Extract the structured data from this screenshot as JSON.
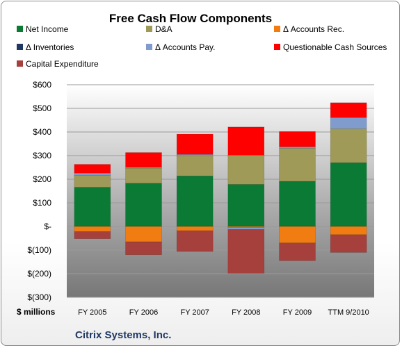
{
  "chart_data": {
    "type": "bar",
    "stacked": true,
    "title": "Free Cash Flow Components",
    "units_label": "$ millions",
    "footer": "Citrix Systems, Inc.",
    "categories": [
      "FY 2005",
      "FY 2006",
      "FY 2007",
      "FY 2008",
      "FY 2009",
      "TTM 9/2010"
    ],
    "ylim": [
      -300,
      600
    ],
    "yticks": [
      -300,
      -200,
      -100,
      0,
      100,
      200,
      300,
      400,
      500,
      600
    ],
    "ytick_labels": [
      "$(300)",
      "$(200)",
      "$(100)",
      "$-",
      "$100",
      "$200",
      "$300",
      "$400",
      "$500",
      "$600"
    ],
    "grid": true,
    "legend_position": "top",
    "series": [
      {
        "name": "Net Income",
        "color": "#0a7a35",
        "values": [
          166,
          183,
          214,
          178,
          191,
          270
        ]
      },
      {
        "name": "D&A",
        "color": "#a09a58",
        "values": [
          50,
          64,
          85,
          124,
          140,
          144
        ]
      },
      {
        "name": "Δ Accounts Rec.",
        "color": "#f07c12",
        "values": [
          -22,
          -65,
          -18,
          -5,
          -70,
          -35
        ]
      },
      {
        "name": "Δ Inventories",
        "color": "#1f3864",
        "values": [
          0,
          0,
          0,
          0,
          0,
          0
        ]
      },
      {
        "name": "Δ Accounts Pay.",
        "color": "#7f9ccc",
        "values": [
          10,
          4,
          6,
          -8,
          6,
          47
        ]
      },
      {
        "name": "Questionable Cash Sources",
        "color": "#ff0000",
        "values": [
          37,
          62,
          86,
          119,
          65,
          63
        ]
      },
      {
        "name": "Capital Expenditure",
        "color": "#a6403d",
        "values": [
          -30,
          -55,
          -88,
          -185,
          -75,
          -75
        ]
      }
    ]
  }
}
